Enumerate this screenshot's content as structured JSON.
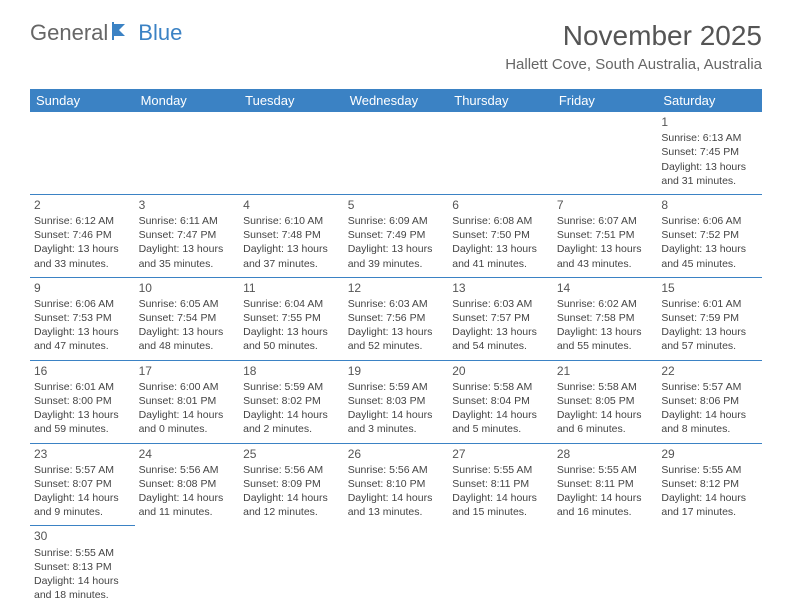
{
  "logo": {
    "text1": "General",
    "text2": "Blue"
  },
  "title": "November 2025",
  "location": "Hallett Cove, South Australia, Australia",
  "colors": {
    "header_bg": "#3b82c4",
    "header_text": "#ffffff",
    "cell_border": "#3b82c4",
    "body_text": "#444444",
    "title_text": "#555555"
  },
  "day_headers": [
    "Sunday",
    "Monday",
    "Tuesday",
    "Wednesday",
    "Thursday",
    "Friday",
    "Saturday"
  ],
  "weeks": [
    [
      null,
      null,
      null,
      null,
      null,
      null,
      {
        "n": "1",
        "sr": "Sunrise: 6:13 AM",
        "ss": "Sunset: 7:45 PM",
        "d1": "Daylight: 13 hours",
        "d2": "and 31 minutes."
      }
    ],
    [
      {
        "n": "2",
        "sr": "Sunrise: 6:12 AM",
        "ss": "Sunset: 7:46 PM",
        "d1": "Daylight: 13 hours",
        "d2": "and 33 minutes."
      },
      {
        "n": "3",
        "sr": "Sunrise: 6:11 AM",
        "ss": "Sunset: 7:47 PM",
        "d1": "Daylight: 13 hours",
        "d2": "and 35 minutes."
      },
      {
        "n": "4",
        "sr": "Sunrise: 6:10 AM",
        "ss": "Sunset: 7:48 PM",
        "d1": "Daylight: 13 hours",
        "d2": "and 37 minutes."
      },
      {
        "n": "5",
        "sr": "Sunrise: 6:09 AM",
        "ss": "Sunset: 7:49 PM",
        "d1": "Daylight: 13 hours",
        "d2": "and 39 minutes."
      },
      {
        "n": "6",
        "sr": "Sunrise: 6:08 AM",
        "ss": "Sunset: 7:50 PM",
        "d1": "Daylight: 13 hours",
        "d2": "and 41 minutes."
      },
      {
        "n": "7",
        "sr": "Sunrise: 6:07 AM",
        "ss": "Sunset: 7:51 PM",
        "d1": "Daylight: 13 hours",
        "d2": "and 43 minutes."
      },
      {
        "n": "8",
        "sr": "Sunrise: 6:06 AM",
        "ss": "Sunset: 7:52 PM",
        "d1": "Daylight: 13 hours",
        "d2": "and 45 minutes."
      }
    ],
    [
      {
        "n": "9",
        "sr": "Sunrise: 6:06 AM",
        "ss": "Sunset: 7:53 PM",
        "d1": "Daylight: 13 hours",
        "d2": "and 47 minutes."
      },
      {
        "n": "10",
        "sr": "Sunrise: 6:05 AM",
        "ss": "Sunset: 7:54 PM",
        "d1": "Daylight: 13 hours",
        "d2": "and 48 minutes."
      },
      {
        "n": "11",
        "sr": "Sunrise: 6:04 AM",
        "ss": "Sunset: 7:55 PM",
        "d1": "Daylight: 13 hours",
        "d2": "and 50 minutes."
      },
      {
        "n": "12",
        "sr": "Sunrise: 6:03 AM",
        "ss": "Sunset: 7:56 PM",
        "d1": "Daylight: 13 hours",
        "d2": "and 52 minutes."
      },
      {
        "n": "13",
        "sr": "Sunrise: 6:03 AM",
        "ss": "Sunset: 7:57 PM",
        "d1": "Daylight: 13 hours",
        "d2": "and 54 minutes."
      },
      {
        "n": "14",
        "sr": "Sunrise: 6:02 AM",
        "ss": "Sunset: 7:58 PM",
        "d1": "Daylight: 13 hours",
        "d2": "and 55 minutes."
      },
      {
        "n": "15",
        "sr": "Sunrise: 6:01 AM",
        "ss": "Sunset: 7:59 PM",
        "d1": "Daylight: 13 hours",
        "d2": "and 57 minutes."
      }
    ],
    [
      {
        "n": "16",
        "sr": "Sunrise: 6:01 AM",
        "ss": "Sunset: 8:00 PM",
        "d1": "Daylight: 13 hours",
        "d2": "and 59 minutes."
      },
      {
        "n": "17",
        "sr": "Sunrise: 6:00 AM",
        "ss": "Sunset: 8:01 PM",
        "d1": "Daylight: 14 hours",
        "d2": "and 0 minutes."
      },
      {
        "n": "18",
        "sr": "Sunrise: 5:59 AM",
        "ss": "Sunset: 8:02 PM",
        "d1": "Daylight: 14 hours",
        "d2": "and 2 minutes."
      },
      {
        "n": "19",
        "sr": "Sunrise: 5:59 AM",
        "ss": "Sunset: 8:03 PM",
        "d1": "Daylight: 14 hours",
        "d2": "and 3 minutes."
      },
      {
        "n": "20",
        "sr": "Sunrise: 5:58 AM",
        "ss": "Sunset: 8:04 PM",
        "d1": "Daylight: 14 hours",
        "d2": "and 5 minutes."
      },
      {
        "n": "21",
        "sr": "Sunrise: 5:58 AM",
        "ss": "Sunset: 8:05 PM",
        "d1": "Daylight: 14 hours",
        "d2": "and 6 minutes."
      },
      {
        "n": "22",
        "sr": "Sunrise: 5:57 AM",
        "ss": "Sunset: 8:06 PM",
        "d1": "Daylight: 14 hours",
        "d2": "and 8 minutes."
      }
    ],
    [
      {
        "n": "23",
        "sr": "Sunrise: 5:57 AM",
        "ss": "Sunset: 8:07 PM",
        "d1": "Daylight: 14 hours",
        "d2": "and 9 minutes."
      },
      {
        "n": "24",
        "sr": "Sunrise: 5:56 AM",
        "ss": "Sunset: 8:08 PM",
        "d1": "Daylight: 14 hours",
        "d2": "and 11 minutes."
      },
      {
        "n": "25",
        "sr": "Sunrise: 5:56 AM",
        "ss": "Sunset: 8:09 PM",
        "d1": "Daylight: 14 hours",
        "d2": "and 12 minutes."
      },
      {
        "n": "26",
        "sr": "Sunrise: 5:56 AM",
        "ss": "Sunset: 8:10 PM",
        "d1": "Daylight: 14 hours",
        "d2": "and 13 minutes."
      },
      {
        "n": "27",
        "sr": "Sunrise: 5:55 AM",
        "ss": "Sunset: 8:11 PM",
        "d1": "Daylight: 14 hours",
        "d2": "and 15 minutes."
      },
      {
        "n": "28",
        "sr": "Sunrise: 5:55 AM",
        "ss": "Sunset: 8:11 PM",
        "d1": "Daylight: 14 hours",
        "d2": "and 16 minutes."
      },
      {
        "n": "29",
        "sr": "Sunrise: 5:55 AM",
        "ss": "Sunset: 8:12 PM",
        "d1": "Daylight: 14 hours",
        "d2": "and 17 minutes."
      }
    ],
    [
      {
        "n": "30",
        "sr": "Sunrise: 5:55 AM",
        "ss": "Sunset: 8:13 PM",
        "d1": "Daylight: 14 hours",
        "d2": "and 18 minutes."
      },
      null,
      null,
      null,
      null,
      null,
      null
    ]
  ]
}
